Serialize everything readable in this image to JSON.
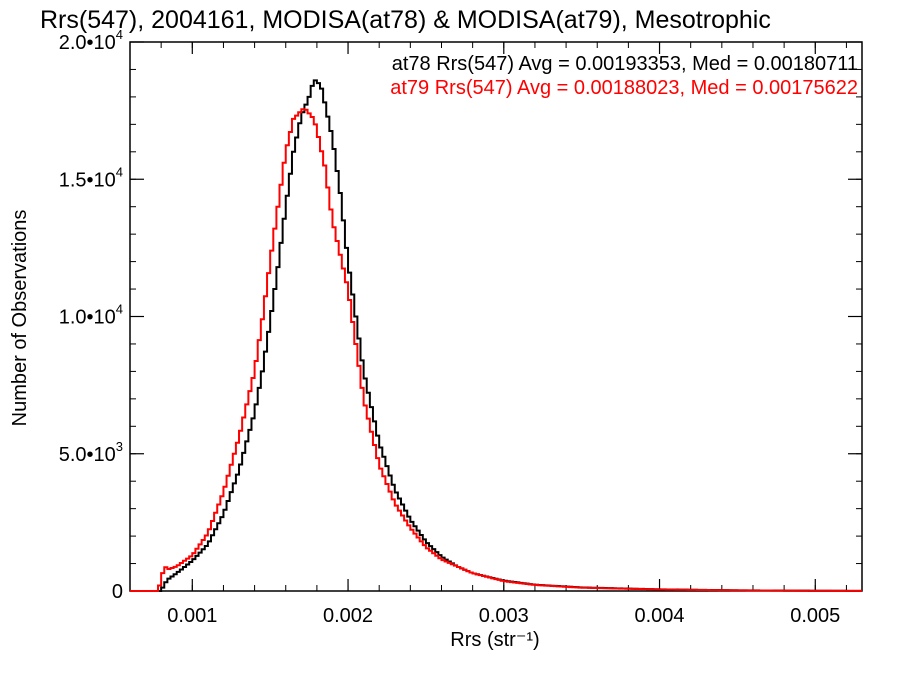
{
  "chart_data": {
    "type": "line",
    "title": "Rrs(547), 2004161, MODISA(at78) & MODISA(at79), Mesotrophic",
    "xlabel": "Rrs (str⁻¹)",
    "ylabel": "Number of Observations",
    "xlim": [
      0.0006,
      0.0053
    ],
    "ylim": [
      0,
      20000
    ],
    "grid": false,
    "x_ticks": [
      {
        "value": 0.001,
        "label": "0.001"
      },
      {
        "value": 0.002,
        "label": "0.002"
      },
      {
        "value": 0.003,
        "label": "0.003"
      },
      {
        "value": 0.004,
        "label": "0.004"
      },
      {
        "value": 0.005,
        "label": "0.005"
      }
    ],
    "y_ticks": [
      {
        "value": 0,
        "mantissa": "0",
        "exp": ""
      },
      {
        "value": 5000,
        "mantissa": "5.0•10",
        "exp": "3"
      },
      {
        "value": 10000,
        "mantissa": "1.0•10",
        "exp": "4"
      },
      {
        "value": 15000,
        "mantissa": "1.5•10",
        "exp": "4"
      },
      {
        "value": 20000,
        "mantissa": "2.0•10",
        "exp": "4"
      }
    ],
    "series": [
      {
        "color": "#000000",
        "annotation": "at78 Rrs(547) Avg = 0.00193353, Med = 0.00180711",
        "x": [
          0.0006,
          0.0008,
          0.00082,
          0.00085,
          0.0009,
          0.001,
          0.0011,
          0.0012,
          0.0013,
          0.0014,
          0.00145,
          0.0015,
          0.00155,
          0.0016,
          0.00165,
          0.0017,
          0.00175,
          0.00178,
          0.0018,
          0.00183,
          0.00185,
          0.0019,
          0.00195,
          0.002,
          0.0021,
          0.0022,
          0.0023,
          0.0024,
          0.0025,
          0.0026,
          0.0027,
          0.0028,
          0.003,
          0.0032,
          0.0035,
          0.004,
          0.0045,
          0.005,
          0.0053
        ],
        "y": [
          0,
          0,
          250,
          450,
          650,
          1100,
          1700,
          2800,
          4400,
          6500,
          8000,
          9800,
          11800,
          14000,
          16000,
          17300,
          18000,
          18600,
          18600,
          18300,
          17800,
          16500,
          14500,
          12000,
          8000,
          5400,
          3700,
          2600,
          1800,
          1250,
          900,
          650,
          380,
          230,
          130,
          60,
          25,
          10,
          5
        ]
      },
      {
        "color": "#ff0000",
        "annotation": "at79 Rrs(547) Avg = 0.00188023, Med = 0.00175622",
        "x": [
          0.0006,
          0.00078,
          0.0008,
          0.00082,
          0.00085,
          0.0009,
          0.001,
          0.0011,
          0.0012,
          0.0013,
          0.0014,
          0.00145,
          0.0015,
          0.00155,
          0.0016,
          0.00165,
          0.0017,
          0.00172,
          0.00175,
          0.00178,
          0.0018,
          0.00185,
          0.0019,
          0.002,
          0.0021,
          0.0022,
          0.0023,
          0.0024,
          0.0025,
          0.0026,
          0.0028,
          0.003,
          0.0032,
          0.0035,
          0.004,
          0.0045,
          0.005,
          0.0053
        ],
        "y": [
          0,
          0,
          400,
          900,
          800,
          900,
          1300,
          2100,
          3600,
          5600,
          8000,
          9900,
          12000,
          14000,
          16000,
          17200,
          17500,
          17600,
          17400,
          17200,
          16800,
          15500,
          13500,
          11000,
          7000,
          4600,
          3200,
          2300,
          1600,
          1150,
          650,
          360,
          220,
          120,
          55,
          22,
          8,
          4
        ]
      }
    ]
  }
}
